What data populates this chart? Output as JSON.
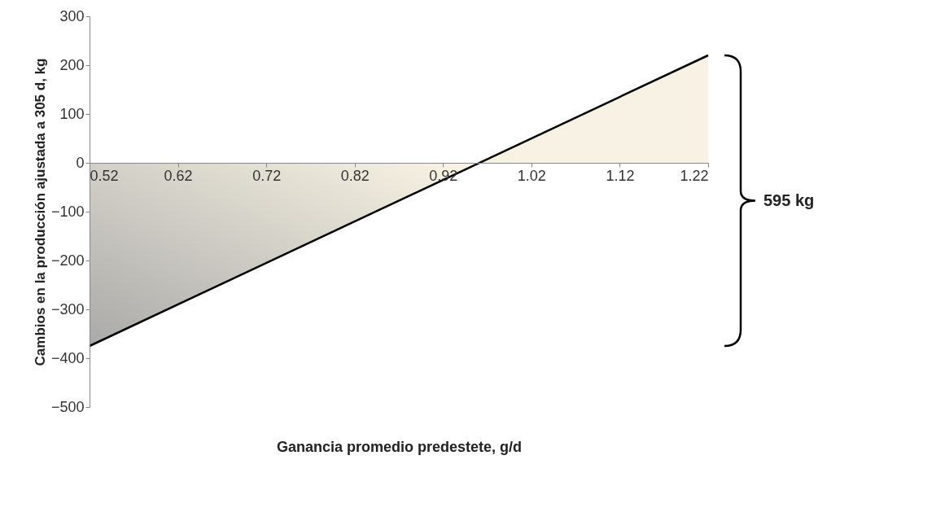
{
  "chart_data": {
    "type": "area",
    "xlabel": "Ganancia promedio predestete,  g/d",
    "ylabel": "Cambios en la producción ajustada a 305 d, kg",
    "x": [
      0.52,
      1.22
    ],
    "series": [
      {
        "color": "#f3ecd6",
        "values": [
          -375,
          220
        ]
      }
    ],
    "xlim": [
      0.52,
      1.22
    ],
    "xticks": [
      0.52,
      0.62,
      0.72,
      0.82,
      0.92,
      1.02,
      1.12,
      1.22
    ],
    "ylim": [
      -500,
      300
    ],
    "yticks": [
      -500,
      -400,
      -300,
      -200,
      -100,
      0,
      100,
      200,
      300
    ],
    "grid": false,
    "annotations": [
      "595 kg"
    ]
  }
}
